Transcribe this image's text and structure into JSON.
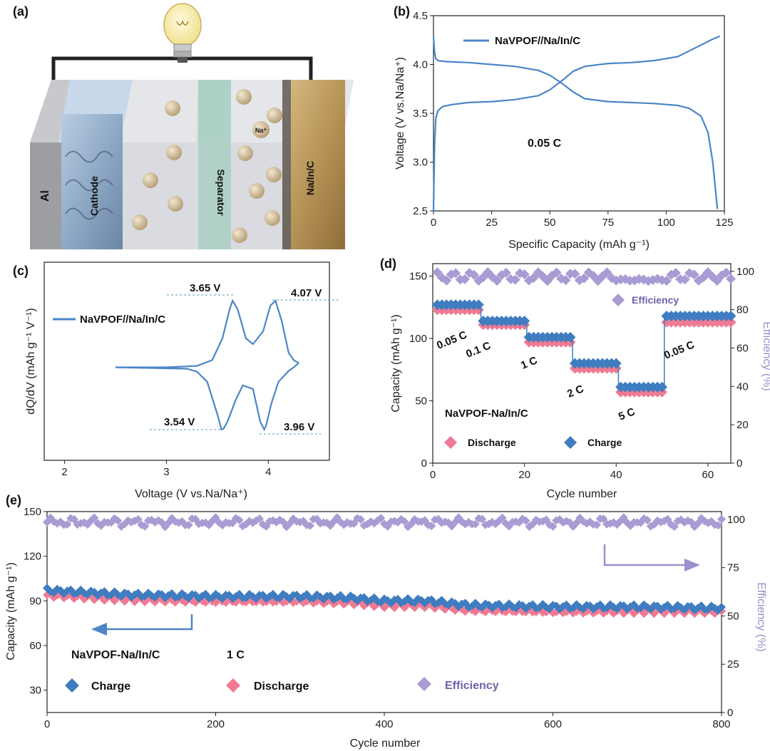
{
  "colors": {
    "blue": "#4a86c6",
    "dark_blue": "#2f6fb5",
    "pink": "#f07a93",
    "purple": "#a99bd3",
    "effText": "#6e63a8"
  },
  "panel_a": {
    "label": "(a)",
    "parts": {
      "al": "Al",
      "cathode": "Cathode",
      "separator": "Separator",
      "anode": "Na/In/C",
      "ion": "Na⁺"
    }
  },
  "panel_b": {
    "label": "(b)",
    "rate_note": "0.05 C"
  },
  "panel_c": {
    "label": "(c)",
    "peak_labels": [
      "3.65 V",
      "4.07 V",
      "3.54 V",
      "3.96 V"
    ]
  },
  "panel_d": {
    "label": "(d)",
    "rate_labels": [
      "0.05 C",
      "0.1 C",
      "1 C",
      "2 C",
      "5 C",
      "0.05 C"
    ],
    "sample": "NaVPOF-Na/In/C"
  },
  "panel_e": {
    "label": "(e)",
    "sample": "NaVPOF-Na/In/C",
    "rate": "1 C"
  },
  "chart_data": [
    {
      "id": "b",
      "type": "line",
      "title": "",
      "xlabel": "Specific Capacity (mAh g⁻¹)",
      "ylabel": "Voltage (V vs.Na/Na⁺)",
      "xlim": [
        0,
        125
      ],
      "ylim": [
        2.5,
        4.5
      ],
      "xticks": [
        "0",
        "25",
        "50",
        "75",
        "100",
        "125"
      ],
      "yticks": [
        "2.5",
        "3.0",
        "3.5",
        "4.0",
        "4.5"
      ],
      "legend": [
        "NaVPOF//Na/In/C"
      ],
      "series": [
        {
          "name": "charge",
          "x": [
            0,
            0.5,
            1,
            2,
            4,
            8,
            15,
            25,
            35,
            45,
            50,
            55,
            60,
            65,
            75,
            85,
            95,
            105,
            110,
            115,
            120,
            123
          ],
          "y": [
            2.5,
            3.2,
            3.45,
            3.53,
            3.57,
            3.59,
            3.61,
            3.62,
            3.64,
            3.68,
            3.74,
            3.83,
            3.93,
            3.98,
            4.01,
            4.02,
            4.04,
            4.08,
            4.14,
            4.2,
            4.26,
            4.29
          ]
        },
        {
          "name": "discharge",
          "x": [
            0,
            0.5,
            1,
            2,
            5,
            15,
            25,
            35,
            45,
            50,
            55,
            60,
            65,
            75,
            85,
            95,
            105,
            110,
            115,
            118,
            120,
            122
          ],
          "y": [
            4.29,
            4.12,
            4.06,
            4.04,
            4.03,
            4.02,
            4.0,
            3.98,
            3.94,
            3.89,
            3.81,
            3.72,
            3.65,
            3.62,
            3.61,
            3.6,
            3.58,
            3.55,
            3.47,
            3.3,
            3.0,
            2.52
          ]
        }
      ]
    },
    {
      "id": "c",
      "type": "line",
      "xlabel": "Voltage (V vs.Na/Na⁺)",
      "ylabel": "dQ/dV (mAh g⁻¹ V⁻¹)",
      "xlim": [
        1.8,
        4.6
      ],
      "xticks": [
        "2",
        "3",
        "4"
      ],
      "legend": [
        "NaVPOF//Na/In/C"
      ],
      "series": [
        {
          "name": "charge",
          "x": [
            2.5,
            3.0,
            3.3,
            3.45,
            3.55,
            3.62,
            3.65,
            3.7,
            3.78,
            3.85,
            3.95,
            4.02,
            4.07,
            4.13,
            4.2,
            4.25,
            4.3
          ],
          "y": [
            0,
            0,
            0.02,
            0.1,
            0.4,
            0.8,
            0.92,
            0.8,
            0.4,
            0.32,
            0.5,
            0.85,
            0.92,
            0.65,
            0.2,
            0.1,
            0.06
          ]
        },
        {
          "name": "discharge",
          "x": [
            4.3,
            4.25,
            4.2,
            4.1,
            4.03,
            3.98,
            3.96,
            3.92,
            3.85,
            3.75,
            3.68,
            3.6,
            3.56,
            3.54,
            3.5,
            3.4,
            3.3,
            3.2,
            2.5
          ],
          "y": [
            0.06,
            0.0,
            -0.05,
            -0.2,
            -0.5,
            -0.8,
            -0.86,
            -0.75,
            -0.3,
            -0.25,
            -0.45,
            -0.75,
            -0.85,
            -0.86,
            -0.65,
            -0.2,
            -0.06,
            -0.02,
            0
          ]
        }
      ]
    },
    {
      "id": "d",
      "type": "scatter",
      "xlabel": "Cycle number",
      "ylabel": "Capacity (mAh g⁻¹)",
      "y2label": "Efficiency (%)",
      "xlim": [
        0,
        65
      ],
      "ylim": [
        0,
        160
      ],
      "y2lim": [
        0,
        104
      ],
      "xticks": [
        "0",
        "20",
        "40",
        "60"
      ],
      "yticks": [
        "0",
        "50",
        "100",
        "150"
      ],
      "y2ticks": [
        "0",
        "20",
        "40",
        "60",
        "80",
        "100"
      ],
      "legend": [
        "Discharge",
        "Charge",
        "Efficiency"
      ],
      "series": [
        {
          "name": "Charge",
          "segments": [
            [
              1,
              10,
              127
            ],
            [
              11,
              20,
              114
            ],
            [
              21,
              30,
              101
            ],
            [
              31,
              40,
              80
            ],
            [
              41,
              50,
              61
            ],
            [
              51,
              65,
              118
            ]
          ]
        },
        {
          "name": "Discharge",
          "segments": [
            [
              1,
              10,
              123
            ],
            [
              11,
              20,
              111
            ],
            [
              21,
              30,
              97
            ],
            [
              31,
              40,
              76
            ],
            [
              41,
              50,
              57
            ],
            [
              51,
              65,
              113
            ]
          ]
        },
        {
          "name": "Efficiency",
          "value_range": [
            95,
            100
          ]
        }
      ]
    },
    {
      "id": "e",
      "type": "scatter",
      "xlabel": "Cycle number",
      "ylabel": "Capacity (mAh g⁻¹)",
      "y2label": "Efficiency (%)",
      "xlim": [
        0,
        800
      ],
      "ylim": [
        15,
        150
      ],
      "y2lim": [
        0,
        104
      ],
      "xticks": [
        "0",
        "200",
        "400",
        "600",
        "800"
      ],
      "yticks": [
        "30",
        "60",
        "90",
        "120",
        "150"
      ],
      "y2ticks": [
        "0",
        "25",
        "50",
        "75",
        "100"
      ],
      "legend": [
        "Charge",
        "Discharge",
        "Efficiency"
      ],
      "series": [
        {
          "name": "Charge",
          "x": [
            0,
            100,
            200,
            300,
            360,
            400,
            450,
            500,
            600,
            700,
            800
          ],
          "y": [
            97,
            94,
            93,
            93,
            92,
            90,
            90,
            87,
            86,
            86,
            85
          ]
        },
        {
          "name": "Discharge",
          "x": [
            0,
            100,
            200,
            300,
            360,
            400,
            450,
            500,
            600,
            700,
            800
          ],
          "y": [
            94,
            91,
            90,
            90,
            89,
            87,
            87,
            84,
            83,
            83,
            83
          ]
        },
        {
          "name": "Efficiency",
          "value_range": [
            96,
            101
          ]
        }
      ]
    }
  ]
}
